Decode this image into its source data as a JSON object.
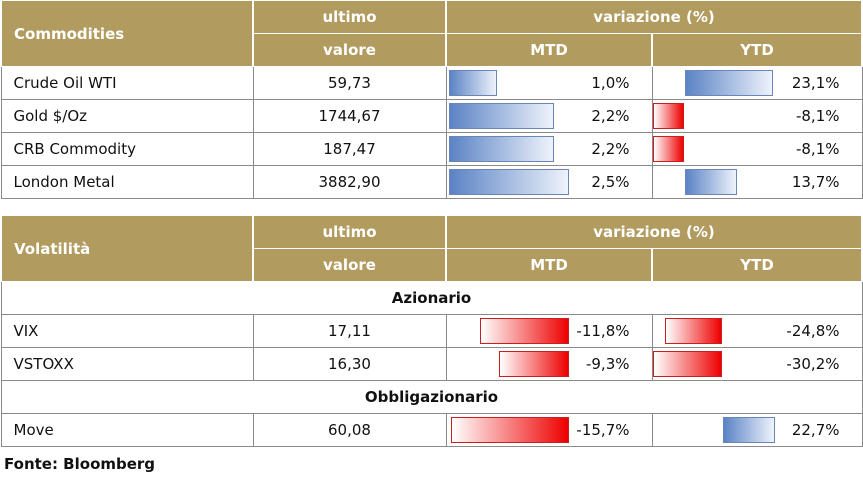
{
  "commodities": {
    "title": "Commodities",
    "col_ultimo": "ultimo",
    "col_valore": "valore",
    "col_variazione": "variazione (%)",
    "col_mtd": "MTD",
    "col_ytd": "YTD",
    "rows": [
      {
        "name": "Crude Oil WTI",
        "valore": "59,73",
        "mtd": "1,0%",
        "mtd_value": 1.0,
        "ytd": "23,1%",
        "ytd_value": 23.1
      },
      {
        "name": "Gold $/Oz",
        "valore": "1744,67",
        "mtd": "2,2%",
        "mtd_value": 2.2,
        "ytd": "-8,1%",
        "ytd_value": -8.1
      },
      {
        "name": "CRB Commodity",
        "valore": "187,47",
        "mtd": "2,2%",
        "mtd_value": 2.2,
        "ytd": "-8,1%",
        "ytd_value": -8.1
      },
      {
        "name": "London Metal",
        "valore": "3882,90",
        "mtd": "2,5%",
        "mtd_value": 2.5,
        "ytd": "13,7%",
        "ytd_value": 13.7
      }
    ]
  },
  "volatilita": {
    "title": "Volatilità",
    "col_ultimo": "ultimo",
    "col_valore": "valore",
    "col_variazione": "variazione (%)",
    "col_mtd": "MTD",
    "col_ytd": "YTD",
    "section_azionario": "Azionario",
    "section_obbligazionario": "Obbligazionario",
    "rows_azionario": [
      {
        "name": "VIX",
        "valore": "17,11",
        "mtd": "-11,8%",
        "mtd_value": -11.8,
        "ytd": "-24,8%",
        "ytd_value": -24.8
      },
      {
        "name": "VSTOXX",
        "valore": "16,30",
        "mtd": "-9,3%",
        "mtd_value": -9.3,
        "ytd": "-30,2%",
        "ytd_value": -30.2
      }
    ],
    "rows_obbligazionario": [
      {
        "name": "Move",
        "valore": "60,08",
        "mtd": "-15,7%",
        "mtd_value": -15.7,
        "ytd": "22,7%",
        "ytd_value": 22.7
      }
    ]
  },
  "source": "Fonte: Bloomberg",
  "colors": {
    "header_bg": "#b29b5f",
    "positive_bar": "#5b83c5",
    "negative_bar": "#ee0000"
  }
}
